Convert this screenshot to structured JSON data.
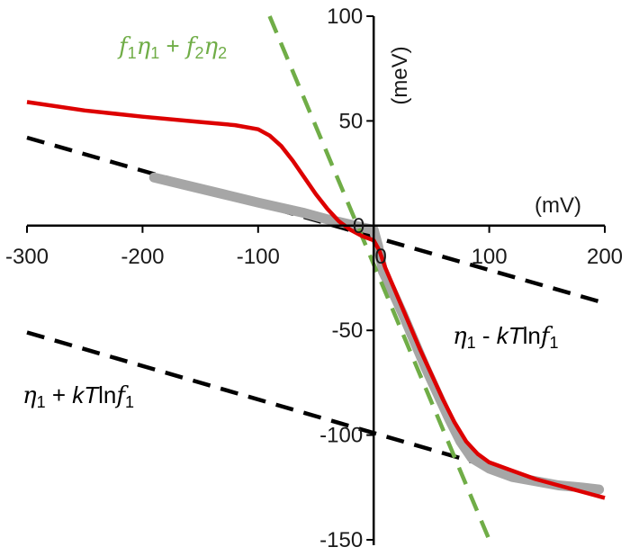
{
  "chart_data": {
    "type": "line",
    "x_unit": "(mV)",
    "y_unit": "(meV)",
    "xlim": [
      -300,
      200
    ],
    "ylim": [
      -150,
      100
    ],
    "x_ticks": [
      -300,
      -200,
      -100,
      0,
      100,
      200
    ],
    "y_ticks": [
      -150,
      -100,
      -50,
      0,
      50,
      100
    ],
    "grid": false,
    "colors": {
      "red": "#dd0000",
      "green": "#70ad47",
      "gray": "#a6a6a6",
      "black": "#000000"
    },
    "series": [
      {
        "style": "measured-gray-thick",
        "points": [
          [
            -190,
            23
          ],
          [
            -160,
            19
          ],
          [
            -130,
            15
          ],
          [
            -100,
            11
          ],
          [
            -80,
            8.5
          ],
          [
            -60,
            6
          ],
          [
            -40,
            3
          ],
          [
            -30,
            1.8
          ],
          [
            -20,
            0.5
          ],
          [
            -10,
            -0.8
          ],
          [
            0,
            -2
          ],
          [
            4,
            -10
          ],
          [
            8,
            -22
          ],
          [
            15,
            -30
          ],
          [
            25,
            -42
          ],
          [
            35,
            -55
          ],
          [
            45,
            -68
          ],
          [
            55,
            -80
          ],
          [
            65,
            -92
          ],
          [
            75,
            -103
          ],
          [
            85,
            -111
          ],
          [
            100,
            -116
          ],
          [
            120,
            -120
          ],
          [
            140,
            -122
          ],
          [
            160,
            -124
          ],
          [
            180,
            -125
          ],
          [
            195,
            -126
          ]
        ]
      },
      {
        "style": "model-red-solid",
        "points": [
          [
            -300,
            59
          ],
          [
            -250,
            55
          ],
          [
            -200,
            52
          ],
          [
            -150,
            49.5
          ],
          [
            -120,
            48
          ],
          [
            -100,
            46
          ],
          [
            -90,
            43
          ],
          [
            -80,
            38
          ],
          [
            -70,
            31
          ],
          [
            -60,
            23
          ],
          [
            -50,
            15
          ],
          [
            -40,
            8
          ],
          [
            -30,
            2
          ],
          [
            -20,
            -2
          ],
          [
            -10,
            -5
          ],
          [
            0,
            -7
          ],
          [
            5,
            -12
          ],
          [
            10,
            -20
          ],
          [
            20,
            -33
          ],
          [
            30,
            -46
          ],
          [
            40,
            -59
          ],
          [
            50,
            -71
          ],
          [
            60,
            -83
          ],
          [
            70,
            -94
          ],
          [
            80,
            -103
          ],
          [
            90,
            -109
          ],
          [
            100,
            -113
          ],
          [
            120,
            -117
          ],
          [
            140,
            -121
          ],
          [
            160,
            -124
          ],
          [
            180,
            -127
          ],
          [
            200,
            -130
          ]
        ]
      },
      {
        "style": "asymptote-green-dashed",
        "points": [
          [
            -90,
            100
          ],
          [
            100,
            -150
          ]
        ]
      },
      {
        "style": "asymptote-black-dashed",
        "points": [
          [
            -300,
            42
          ],
          [
            200,
            -37
          ]
        ]
      },
      {
        "style": "asymptote-black-dashed",
        "points": [
          [
            -300,
            -51
          ],
          [
            100,
            -115
          ]
        ]
      }
    ],
    "annotations": [
      {
        "id": "green",
        "color": "#70ad47",
        "parts": [
          {
            "t": "f"
          },
          {
            "t": "1",
            "sub": true
          },
          {
            "t": "η"
          },
          {
            "t": "1",
            "sub": true
          },
          {
            "t": " + ",
            "plain": true
          },
          {
            "t": "f"
          },
          {
            "t": "2",
            "sub": true
          },
          {
            "t": "η"
          },
          {
            "t": "2",
            "sub": true
          }
        ]
      },
      {
        "id": "right",
        "color": "#000000",
        "parts": [
          {
            "t": "η"
          },
          {
            "t": "1",
            "sub": true
          },
          {
            "t": " -  ",
            "plain": true
          },
          {
            "t": "kT",
            "italicPlain": true
          },
          {
            "t": "ln",
            "plain": true
          },
          {
            "t": "f"
          },
          {
            "t": "1",
            "sub": true
          }
        ]
      },
      {
        "id": "left",
        "color": "#000000",
        "parts": [
          {
            "t": "η"
          },
          {
            "t": "1",
            "sub": true
          },
          {
            "t": " + ",
            "plain": true
          },
          {
            "t": "kT",
            "italicPlain": true
          },
          {
            "t": "ln",
            "plain": true
          },
          {
            "t": "f"
          },
          {
            "t": "1",
            "sub": true
          }
        ]
      }
    ]
  }
}
